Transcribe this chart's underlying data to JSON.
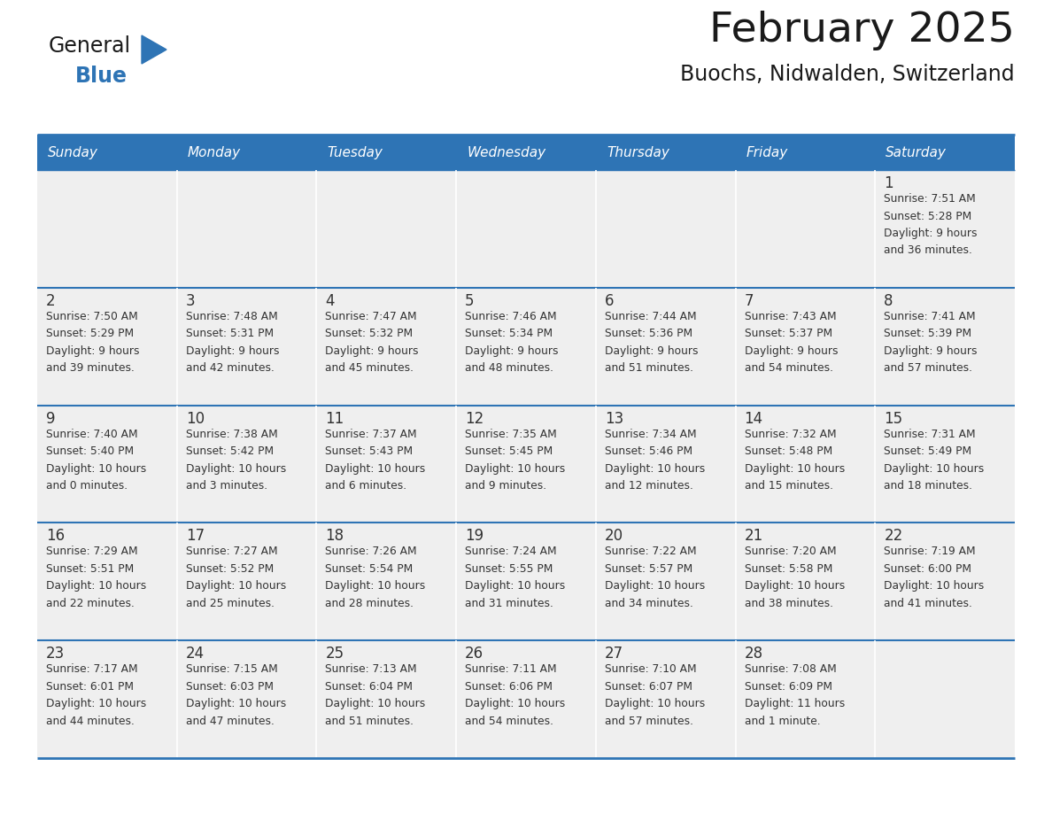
{
  "title": "February 2025",
  "subtitle": "Buochs, Nidwalden, Switzerland",
  "days_of_week": [
    "Sunday",
    "Monday",
    "Tuesday",
    "Wednesday",
    "Thursday",
    "Friday",
    "Saturday"
  ],
  "header_bg": "#2E74B5",
  "header_text": "#FFFFFF",
  "row_bg": "#EFEFEF",
  "cell_border_color": "#2E74B5",
  "day_number_color": "#333333",
  "info_text_color": "#333333",
  "logo_general_color": "#1a1a1a",
  "logo_blue_color": "#2E74B5",
  "calendar_data": [
    [
      {
        "day": null,
        "info": ""
      },
      {
        "day": null,
        "info": ""
      },
      {
        "day": null,
        "info": ""
      },
      {
        "day": null,
        "info": ""
      },
      {
        "day": null,
        "info": ""
      },
      {
        "day": null,
        "info": ""
      },
      {
        "day": 1,
        "info": "Sunrise: 7:51 AM\nSunset: 5:28 PM\nDaylight: 9 hours\nand 36 minutes."
      }
    ],
    [
      {
        "day": 2,
        "info": "Sunrise: 7:50 AM\nSunset: 5:29 PM\nDaylight: 9 hours\nand 39 minutes."
      },
      {
        "day": 3,
        "info": "Sunrise: 7:48 AM\nSunset: 5:31 PM\nDaylight: 9 hours\nand 42 minutes."
      },
      {
        "day": 4,
        "info": "Sunrise: 7:47 AM\nSunset: 5:32 PM\nDaylight: 9 hours\nand 45 minutes."
      },
      {
        "day": 5,
        "info": "Sunrise: 7:46 AM\nSunset: 5:34 PM\nDaylight: 9 hours\nand 48 minutes."
      },
      {
        "day": 6,
        "info": "Sunrise: 7:44 AM\nSunset: 5:36 PM\nDaylight: 9 hours\nand 51 minutes."
      },
      {
        "day": 7,
        "info": "Sunrise: 7:43 AM\nSunset: 5:37 PM\nDaylight: 9 hours\nand 54 minutes."
      },
      {
        "day": 8,
        "info": "Sunrise: 7:41 AM\nSunset: 5:39 PM\nDaylight: 9 hours\nand 57 minutes."
      }
    ],
    [
      {
        "day": 9,
        "info": "Sunrise: 7:40 AM\nSunset: 5:40 PM\nDaylight: 10 hours\nand 0 minutes."
      },
      {
        "day": 10,
        "info": "Sunrise: 7:38 AM\nSunset: 5:42 PM\nDaylight: 10 hours\nand 3 minutes."
      },
      {
        "day": 11,
        "info": "Sunrise: 7:37 AM\nSunset: 5:43 PM\nDaylight: 10 hours\nand 6 minutes."
      },
      {
        "day": 12,
        "info": "Sunrise: 7:35 AM\nSunset: 5:45 PM\nDaylight: 10 hours\nand 9 minutes."
      },
      {
        "day": 13,
        "info": "Sunrise: 7:34 AM\nSunset: 5:46 PM\nDaylight: 10 hours\nand 12 minutes."
      },
      {
        "day": 14,
        "info": "Sunrise: 7:32 AM\nSunset: 5:48 PM\nDaylight: 10 hours\nand 15 minutes."
      },
      {
        "day": 15,
        "info": "Sunrise: 7:31 AM\nSunset: 5:49 PM\nDaylight: 10 hours\nand 18 minutes."
      }
    ],
    [
      {
        "day": 16,
        "info": "Sunrise: 7:29 AM\nSunset: 5:51 PM\nDaylight: 10 hours\nand 22 minutes."
      },
      {
        "day": 17,
        "info": "Sunrise: 7:27 AM\nSunset: 5:52 PM\nDaylight: 10 hours\nand 25 minutes."
      },
      {
        "day": 18,
        "info": "Sunrise: 7:26 AM\nSunset: 5:54 PM\nDaylight: 10 hours\nand 28 minutes."
      },
      {
        "day": 19,
        "info": "Sunrise: 7:24 AM\nSunset: 5:55 PM\nDaylight: 10 hours\nand 31 minutes."
      },
      {
        "day": 20,
        "info": "Sunrise: 7:22 AM\nSunset: 5:57 PM\nDaylight: 10 hours\nand 34 minutes."
      },
      {
        "day": 21,
        "info": "Sunrise: 7:20 AM\nSunset: 5:58 PM\nDaylight: 10 hours\nand 38 minutes."
      },
      {
        "day": 22,
        "info": "Sunrise: 7:19 AM\nSunset: 6:00 PM\nDaylight: 10 hours\nand 41 minutes."
      }
    ],
    [
      {
        "day": 23,
        "info": "Sunrise: 7:17 AM\nSunset: 6:01 PM\nDaylight: 10 hours\nand 44 minutes."
      },
      {
        "day": 24,
        "info": "Sunrise: 7:15 AM\nSunset: 6:03 PM\nDaylight: 10 hours\nand 47 minutes."
      },
      {
        "day": 25,
        "info": "Sunrise: 7:13 AM\nSunset: 6:04 PM\nDaylight: 10 hours\nand 51 minutes."
      },
      {
        "day": 26,
        "info": "Sunrise: 7:11 AM\nSunset: 6:06 PM\nDaylight: 10 hours\nand 54 minutes."
      },
      {
        "day": 27,
        "info": "Sunrise: 7:10 AM\nSunset: 6:07 PM\nDaylight: 10 hours\nand 57 minutes."
      },
      {
        "day": 28,
        "info": "Sunrise: 7:08 AM\nSunset: 6:09 PM\nDaylight: 11 hours\nand 1 minute."
      },
      {
        "day": null,
        "info": ""
      }
    ]
  ]
}
